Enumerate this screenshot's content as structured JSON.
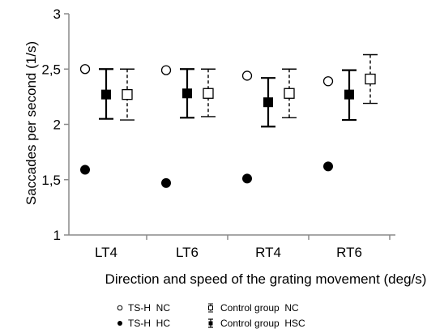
{
  "chart_data": {
    "type": "scatter",
    "categories": [
      "LT4",
      "LT6",
      "RT4",
      "RT6"
    ],
    "ylabel": "Saccades per second (1/s)",
    "xlabel": "Direction and speed of the grating movement (deg/s)",
    "ylim": [
      1,
      3
    ],
    "yticks": [
      1,
      1.5,
      2,
      2.5,
      3
    ],
    "ytick_labels": [
      "1",
      "1,5",
      "2",
      "2,5",
      "3"
    ],
    "grid": false,
    "legend_position": "bottom",
    "series": [
      {
        "name": "TS-H  NC",
        "marker": "open-circle",
        "values": [
          2.5,
          2.49,
          2.44,
          2.39
        ]
      },
      {
        "name": "TS-H  HC",
        "marker": "filled-circle",
        "values": [
          1.59,
          1.47,
          1.51,
          1.62
        ]
      },
      {
        "name": "Control group  NC",
        "marker": "open-square",
        "line": "dashed",
        "values": [
          2.27,
          2.28,
          2.28,
          2.41
        ],
        "error_low": [
          2.04,
          2.07,
          2.06,
          2.19
        ],
        "error_high": [
          2.5,
          2.5,
          2.5,
          2.63
        ]
      },
      {
        "name": "Control group  HSC",
        "marker": "filled-square",
        "line": "solid",
        "values": [
          2.27,
          2.28,
          2.2,
          2.27
        ],
        "error_low": [
          2.05,
          2.06,
          1.98,
          2.04
        ],
        "error_high": [
          2.5,
          2.5,
          2.42,
          2.49
        ]
      }
    ]
  }
}
